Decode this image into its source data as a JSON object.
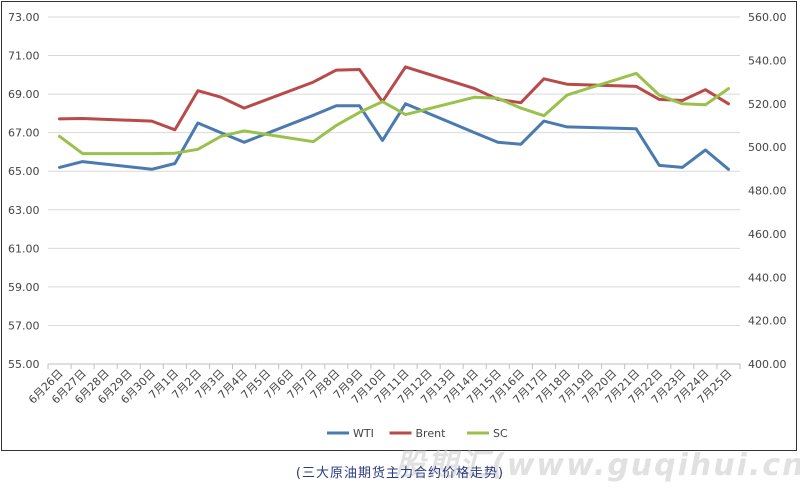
{
  "chart_data": {
    "type": "line",
    "categories": [
      "6月26日",
      "6月27日",
      "6月28日",
      "6月29日",
      "6月30日",
      "7月1日",
      "7月2日",
      "7月3日",
      "7月4日",
      "7月5日",
      "7月6日",
      "7月7日",
      "7月8日",
      "7月9日",
      "7月10日",
      "7月11日",
      "7月12日",
      "7月13日",
      "7月14日",
      "7月15日",
      "7月16日",
      "7月17日",
      "7月18日",
      "7月19日",
      "7月20日",
      "7月21日",
      "7月22日",
      "7月23日",
      "7月24日",
      "7月25日"
    ],
    "series": [
      {
        "name": "WTI",
        "axis": "left",
        "color": "#4a7ab0",
        "values": [
          65.2,
          65.5,
          null,
          null,
          65.1,
          65.4,
          67.5,
          67.0,
          66.5,
          null,
          null,
          67.9,
          68.4,
          68.4,
          66.6,
          68.5,
          null,
          null,
          67.0,
          66.5,
          66.4,
          67.6,
          67.3,
          null,
          null,
          67.2,
          65.3,
          65.2,
          66.1,
          65.1
        ]
      },
      {
        "name": "Brent",
        "axis": "right",
        "color": "#b84a4a",
        "values": [
          513,
          513.2,
          null,
          null,
          512,
          508,
          526,
          523,
          518,
          null,
          null,
          530,
          535.5,
          535.8,
          521,
          537,
          null,
          null,
          527,
          522,
          520.5,
          531.5,
          529,
          null,
          null,
          528,
          522,
          521.5,
          526.5,
          520
        ]
      },
      {
        "name": "SC",
        "axis": "right",
        "color": "#9ac14c",
        "values": [
          505,
          497,
          null,
          null,
          497,
          497.2,
          499,
          505,
          507.5,
          null,
          null,
          502.5,
          510,
          516,
          521,
          515,
          null,
          null,
          523,
          522.5,
          518,
          514.5,
          524,
          null,
          null,
          534,
          524,
          520,
          519.5,
          527
        ]
      }
    ],
    "y_left": {
      "min": 55,
      "max": 73,
      "ticks": [
        "55.00",
        "57.00",
        "59.00",
        "61.00",
        "63.00",
        "65.00",
        "67.00",
        "69.00",
        "71.00",
        "73.00"
      ]
    },
    "y_right": {
      "min": 400,
      "max": 560,
      "ticks": [
        "400.00",
        "420.00",
        "440.00",
        "460.00",
        "480.00",
        "500.00",
        "520.00",
        "540.00",
        "560.00"
      ]
    },
    "grid": "horizontal",
    "legend": "bottom-center"
  },
  "caption": "(三大原油期货主力合约价格走势)",
  "watermark": "股期汇(www.guqihui.cn)"
}
